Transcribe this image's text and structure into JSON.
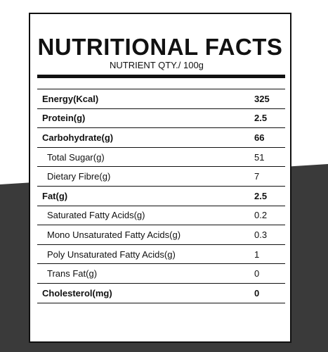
{
  "header": {
    "title": "NUTRITIONAL FACTS",
    "subtitle": "NUTRIENT QTY./ 100g"
  },
  "colors": {
    "background_dark": "#3a3a3a",
    "ink": "#111111",
    "card": "#ffffff"
  },
  "nutrients": [
    {
      "name": "Energy(Kcal)",
      "value": "325",
      "bold": true
    },
    {
      "name": "Protein(g)",
      "value": "2.5",
      "bold": true
    },
    {
      "name": "Carbohydrate(g)",
      "value": "66",
      "bold": true
    },
    {
      "name": "Total Sugar(g)",
      "value": "51",
      "bold": false
    },
    {
      "name": "Dietary Fibre(g)",
      "value": "7",
      "bold": false
    },
    {
      "name": "Fat(g)",
      "value": "2.5",
      "bold": true
    },
    {
      "name": "Saturated Fatty Acids(g)",
      "value": "0.2",
      "bold": false
    },
    {
      "name": "Mono Unsaturated Fatty Acids(g)",
      "value": "0.3",
      "bold": false
    },
    {
      "name": "Poly Unsaturated Fatty Acids(g)",
      "value": "1",
      "bold": false
    },
    {
      "name": "Trans Fat(g)",
      "value": "0",
      "bold": false
    },
    {
      "name": "Cholesterol(mg)",
      "value": "0",
      "bold": true
    }
  ]
}
